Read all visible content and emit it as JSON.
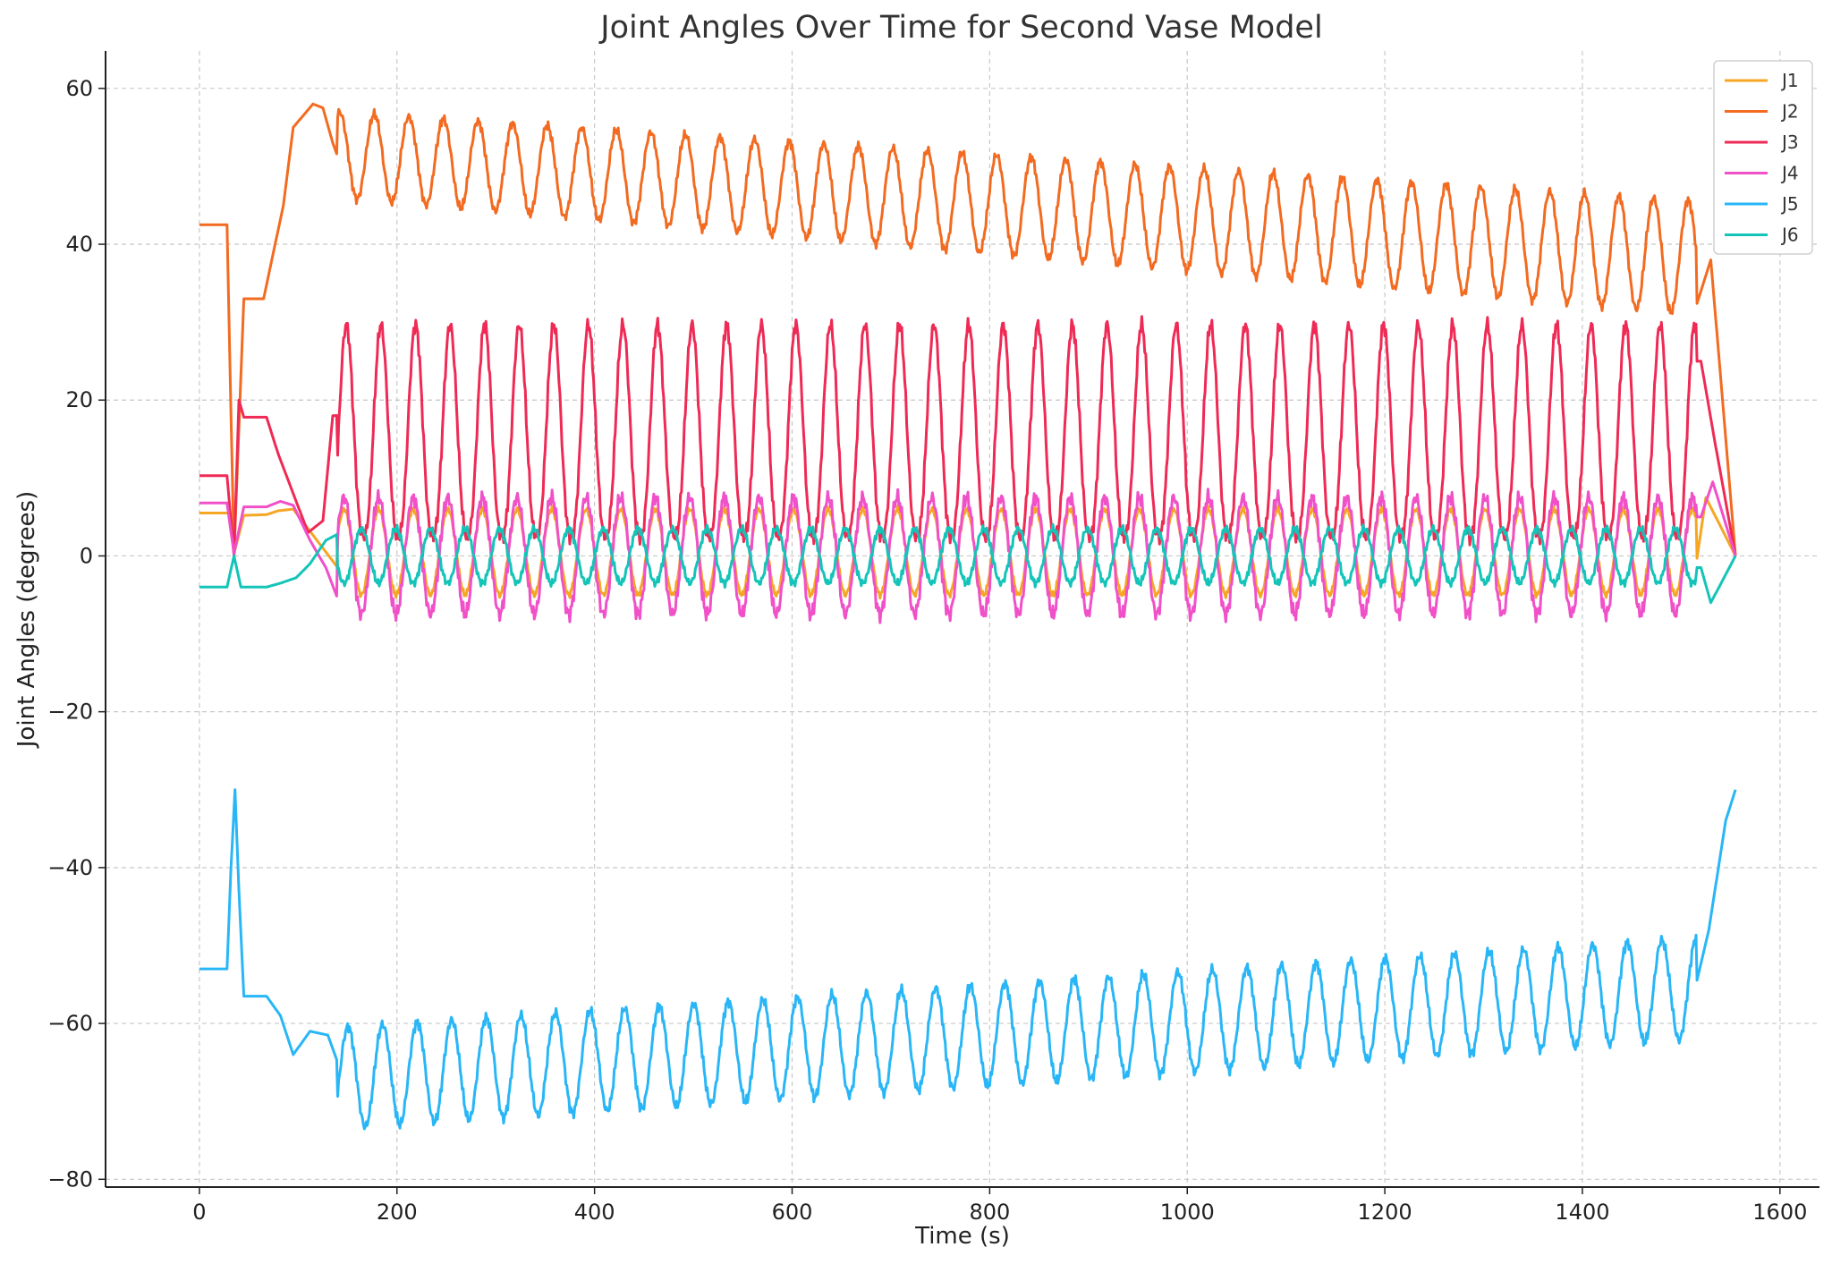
{
  "chart_data": {
    "type": "line",
    "title": "Joint Angles Over Time for Second Vase Model",
    "xlabel": "Time (s)",
    "ylabel": "Joint Angles (degrees)",
    "xlim": [
      -95,
      1640
    ],
    "ylim": [
      -81,
      64.8
    ],
    "xticks": [
      0,
      200,
      400,
      600,
      800,
      1000,
      1200,
      1400,
      1600
    ],
    "yticks": [
      -80,
      -60,
      -40,
      -20,
      0,
      20,
      40,
      60
    ],
    "grid": true,
    "legend_position": "top-right",
    "series": [
      {
        "name": "J1",
        "color": "#f5a623",
        "x": [
          0,
          30,
          35,
          45,
          68,
          80,
          95,
          125,
          140,
          160,
          165,
          200,
          210,
          220,
          1510,
          1525,
          1555
        ],
        "y": [
          5.5,
          5.5,
          0.3,
          5.2,
          5.3,
          5.8,
          6,
          1,
          -1.5,
          -5.5,
          -2.5,
          5,
          -2,
          -5.5,
          -5.5,
          7.5,
          0
        ]
      },
      {
        "name": "J2",
        "color": "#f26b21",
        "x": [
          0,
          28,
          35,
          45,
          65,
          85,
          95,
          115,
          125,
          135,
          155,
          175,
          185,
          1515,
          1530,
          1555
        ],
        "y": [
          42.5,
          42.5,
          0,
          33,
          33,
          45,
          55,
          58,
          57.5,
          53,
          46,
          56,
          57,
          32,
          38,
          0
        ]
      },
      {
        "name": "J3",
        "color": "#ee2a55",
        "x": [
          0,
          28,
          35,
          40,
          45,
          68,
          80,
          95,
          110,
          125,
          135,
          1520,
          1535,
          1555
        ],
        "y": [
          10.3,
          10.3,
          0,
          20,
          17.8,
          17.8,
          13,
          8,
          3,
          4.5,
          18,
          25,
          14,
          0
        ]
      },
      {
        "name": "J4",
        "color": "#f050c8",
        "x": [
          0,
          28,
          35,
          45,
          68,
          82,
          95,
          112,
          128,
          140,
          165,
          1520,
          1532,
          1555
        ],
        "y": [
          6.8,
          6.8,
          0.3,
          6.3,
          6.3,
          7,
          6.5,
          2,
          -1.5,
          -5.5,
          7,
          5,
          9.5,
          0
        ]
      },
      {
        "name": "J5",
        "color": "#29b6f6",
        "x": [
          0,
          28,
          32,
          36,
          40,
          45,
          68,
          82,
          95,
          112,
          130,
          160,
          1500,
          1510,
          1515,
          1528,
          1545,
          1555
        ],
        "y": [
          -53,
          -53,
          -40,
          -30,
          -43,
          -56.5,
          -56.5,
          -59,
          -64,
          -61,
          -61.5,
          -72,
          -57,
          -60,
          -55,
          -48,
          -34,
          -30
        ]
      },
      {
        "name": "J6",
        "color": "#14c4b8",
        "x": [
          0,
          28,
          35,
          42,
          68,
          82,
          98,
          112,
          128,
          140,
          150,
          1520,
          1530,
          1555
        ],
        "y": [
          -4,
          -4,
          0,
          -4,
          -4,
          -3.5,
          -2.8,
          -1,
          2,
          2.8,
          1.5,
          -1.5,
          -6,
          0
        ]
      }
    ],
    "oscillation": {
      "start_time": 140,
      "period_s": 35,
      "J2_amplitude_start": 5.5,
      "J2_amplitude_end": 7.3,
      "J2_center_start": 51.5,
      "J2_center_end": 38.3,
      "J3_min": 2.5,
      "J3_max": 29.7,
      "J4_min": -7.5,
      "J4_max": 7.5,
      "J1_min": -5,
      "J1_max": 6,
      "J5_center_start": -67,
      "J5_center_end": -55.5,
      "J5_amplitude": 6.5,
      "J6_amplitude": 3.5
    }
  }
}
